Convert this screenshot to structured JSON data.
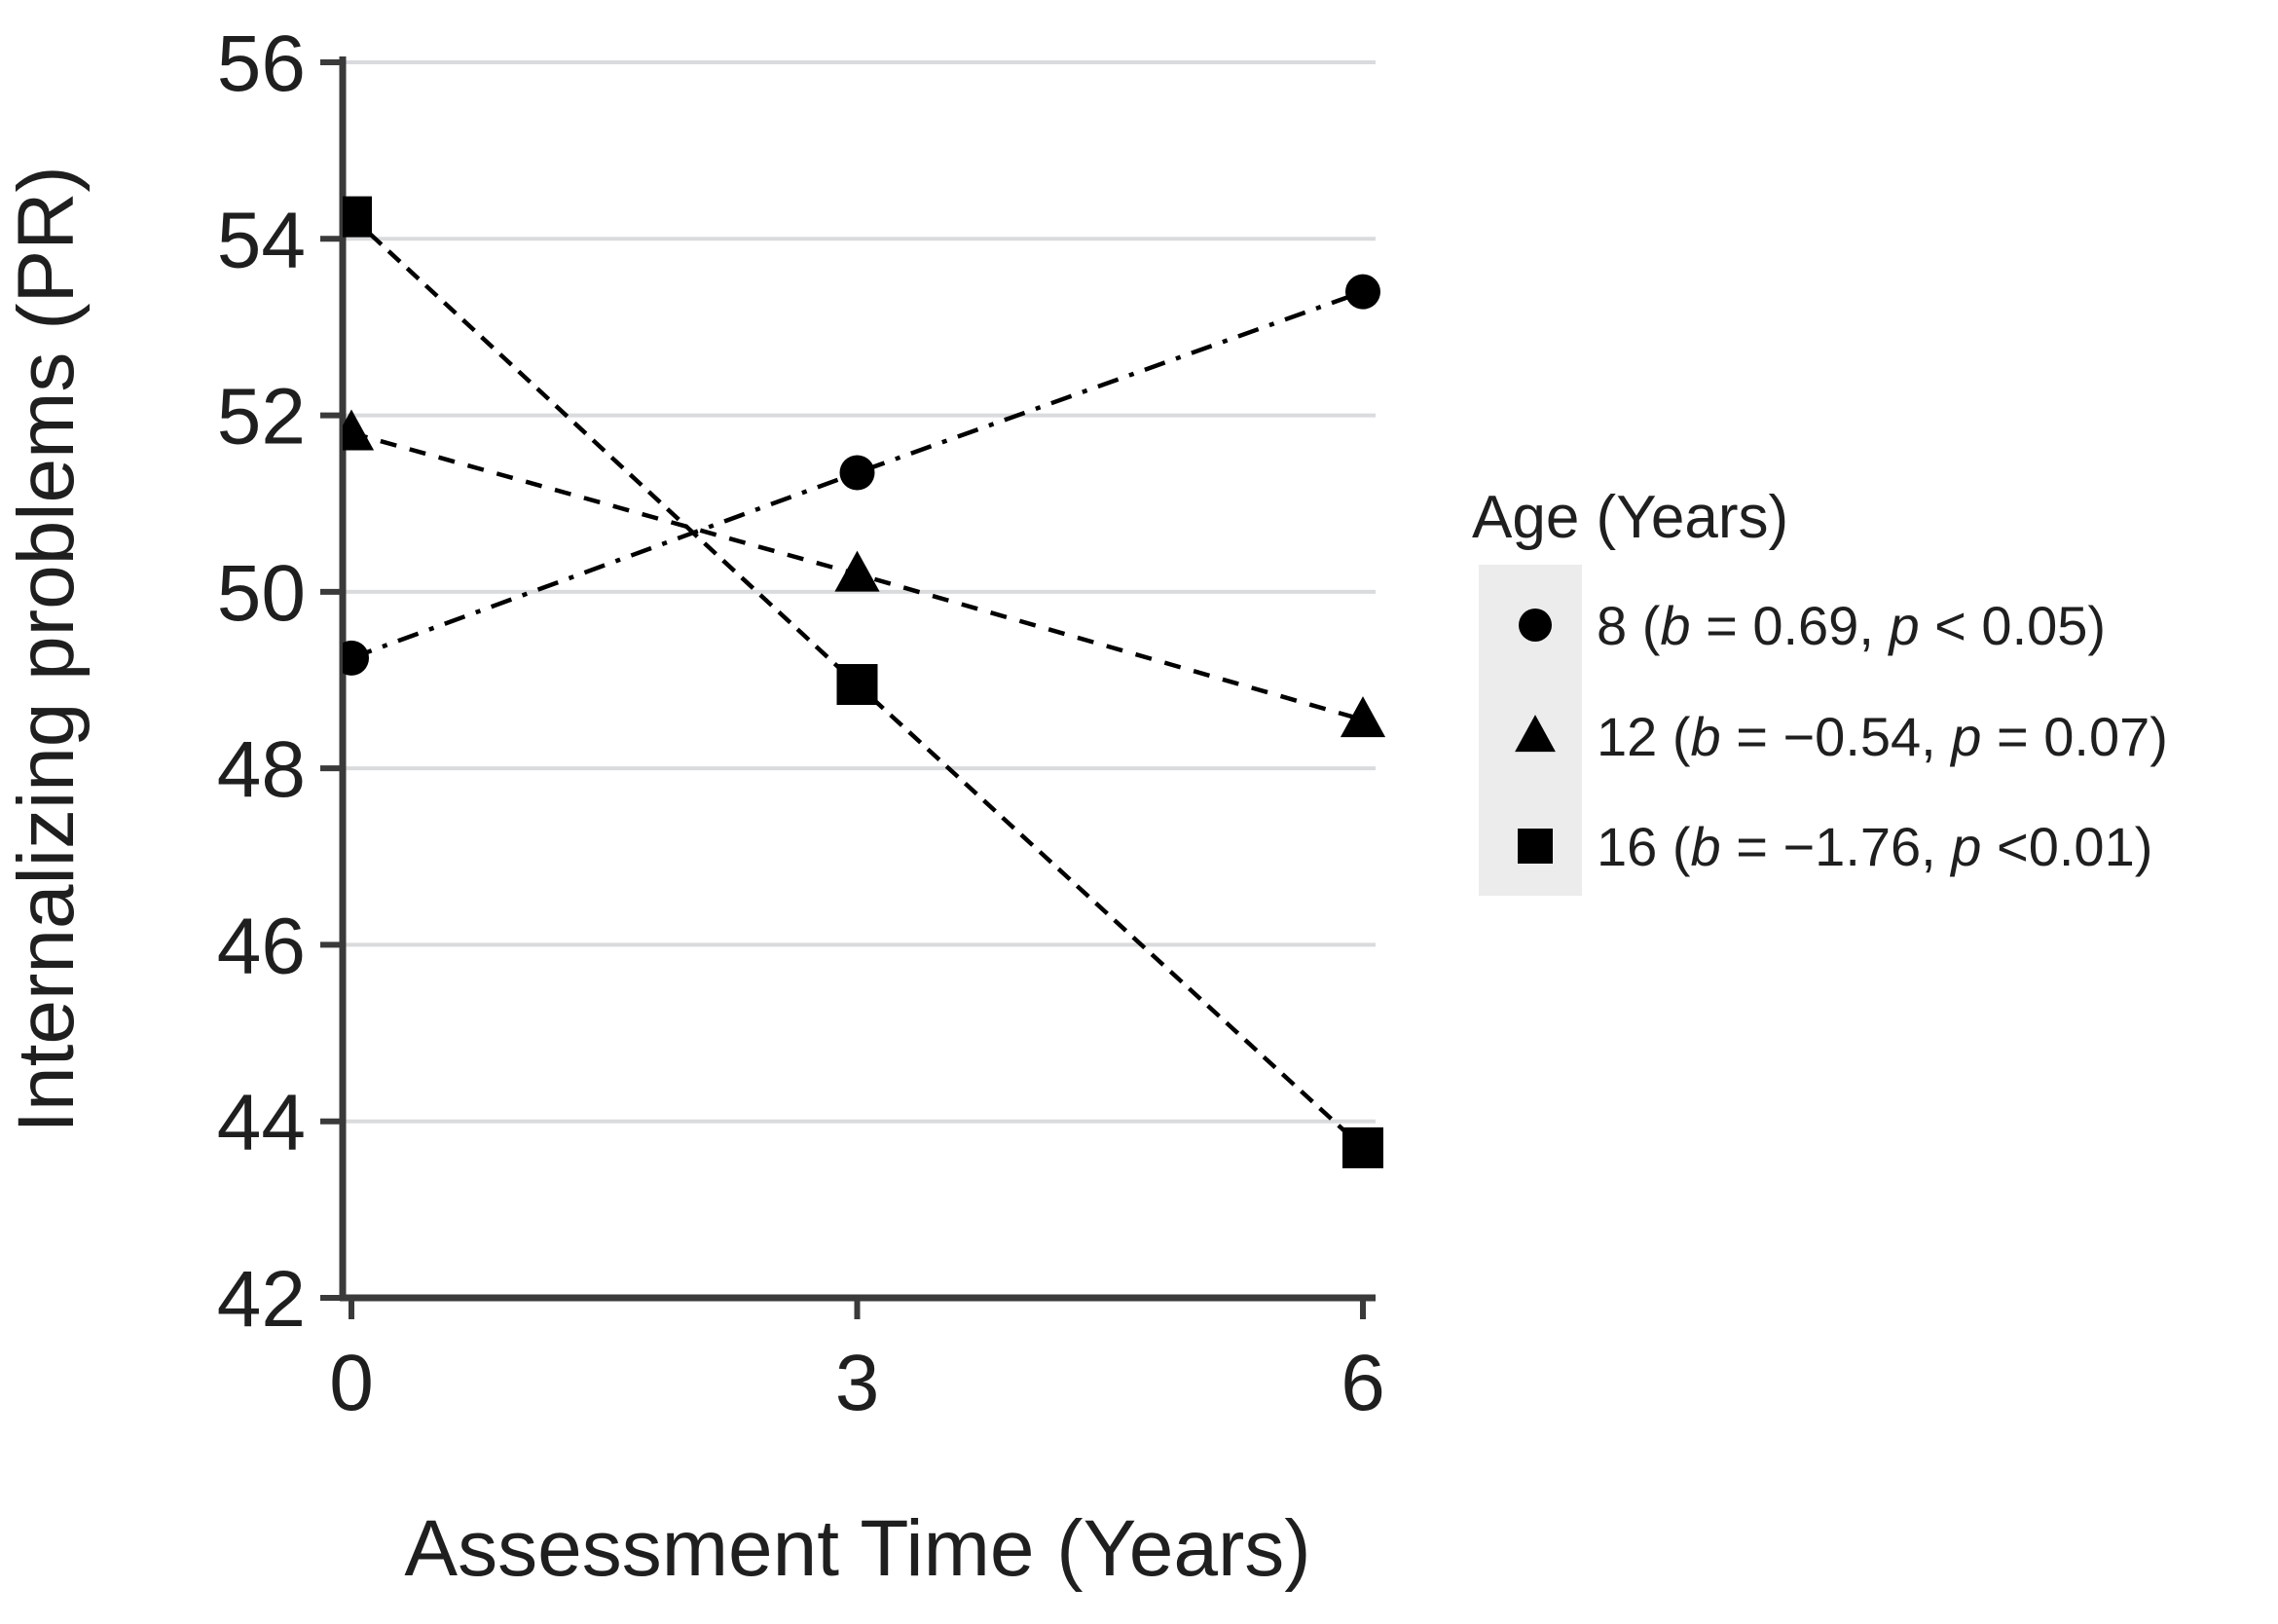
{
  "figure": {
    "background": "#ffffff"
  },
  "colors": {
    "axis": "#3a3a3a",
    "grid": "#d9dbdd",
    "text": "#1f1f1f",
    "series": "#000000",
    "legend_strip": "#ececec"
  },
  "chart_data": {
    "type": "line",
    "title": "",
    "xlabel": "Assessment Time (Years)",
    "ylabel": "Internalizing problems (PR)",
    "x": [
      0,
      3,
      6
    ],
    "x_tick_labels": [
      "0",
      "3",
      "6"
    ],
    "y_ticks": [
      42,
      44,
      46,
      48,
      50,
      52,
      54,
      56
    ],
    "y_tick_labels": [
      "42",
      "44",
      "46",
      "48",
      "50",
      "52",
      "54",
      "56"
    ],
    "xlim": [
      0,
      6.1
    ],
    "ylim": [
      42,
      56
    ],
    "grid": "horizontal-only",
    "series": [
      {
        "name": "8",
        "marker": "circle",
        "linestyle": "dashdot",
        "values": [
          49.25,
          51.35,
          53.4
        ],
        "slope_b": 0.69,
        "p_text": "p < 0.05"
      },
      {
        "name": "12",
        "marker": "triangle",
        "linestyle": "shortdash",
        "values": [
          51.8,
          50.2,
          48.55
        ],
        "slope_b": -0.54,
        "p_text": "p = 0.07"
      },
      {
        "name": "16",
        "marker": "square",
        "linestyle": "dash",
        "values": [
          54.25,
          48.95,
          43.7
        ],
        "slope_b": -1.76,
        "p_text": "p < 0.01"
      }
    ],
    "legend": {
      "title": "Age (Years)",
      "position": "right-middle",
      "entries": [
        {
          "marker": "circle",
          "parts": [
            {
              "t": "8 (",
              "i": false
            },
            {
              "t": "b",
              "i": true
            },
            {
              "t": " = 0.69, ",
              "i": false
            },
            {
              "t": "p",
              "i": true
            },
            {
              "t": " < 0.05)",
              "i": false
            }
          ]
        },
        {
          "marker": "triangle",
          "parts": [
            {
              "t": "12 (",
              "i": false
            },
            {
              "t": "b",
              "i": true
            },
            {
              "t": " = −0.54, ",
              "i": false
            },
            {
              "t": "p",
              "i": true
            },
            {
              "t": " = 0.07)",
              "i": false
            }
          ]
        },
        {
          "marker": "square",
          "parts": [
            {
              "t": "16 (",
              "i": false
            },
            {
              "t": "b",
              "i": true
            },
            {
              "t": " = −1.76, ",
              "i": false
            },
            {
              "t": "p",
              "i": true
            },
            {
              "t": " <0.01)",
              "i": false
            }
          ]
        }
      ]
    }
  }
}
